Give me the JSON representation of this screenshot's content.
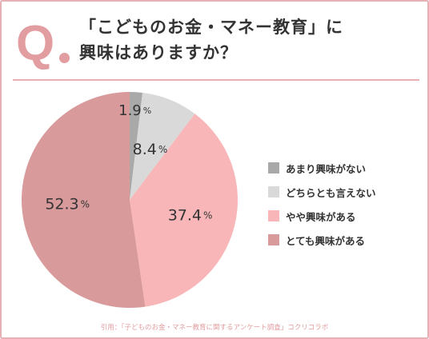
{
  "header": {
    "q_mark": "Q",
    "question_line1": "「こどものお金・マネー教育」に",
    "question_line2": "興味はありますか？"
  },
  "chart_data": {
    "type": "pie",
    "categories": [
      "あまり興味がない",
      "どちらとも言えない",
      "やや興味がある",
      "とても興味がある"
    ],
    "values": [
      1.9,
      8.4,
      37.4,
      52.3
    ],
    "value_labels": [
      "1.9",
      "8.4",
      "37.4",
      "52.3"
    ],
    "unit": "%",
    "colors": [
      "#a9a9a9",
      "#d9d9d9",
      "#f8b6b8",
      "#d99a9c"
    ],
    "start_angle_deg": 0,
    "direction": "clockwise",
    "legend_position": "right"
  },
  "footer": {
    "source": "引用：「子どものお金・マネー教育に関するアンケート調査」コクリコラボ"
  }
}
